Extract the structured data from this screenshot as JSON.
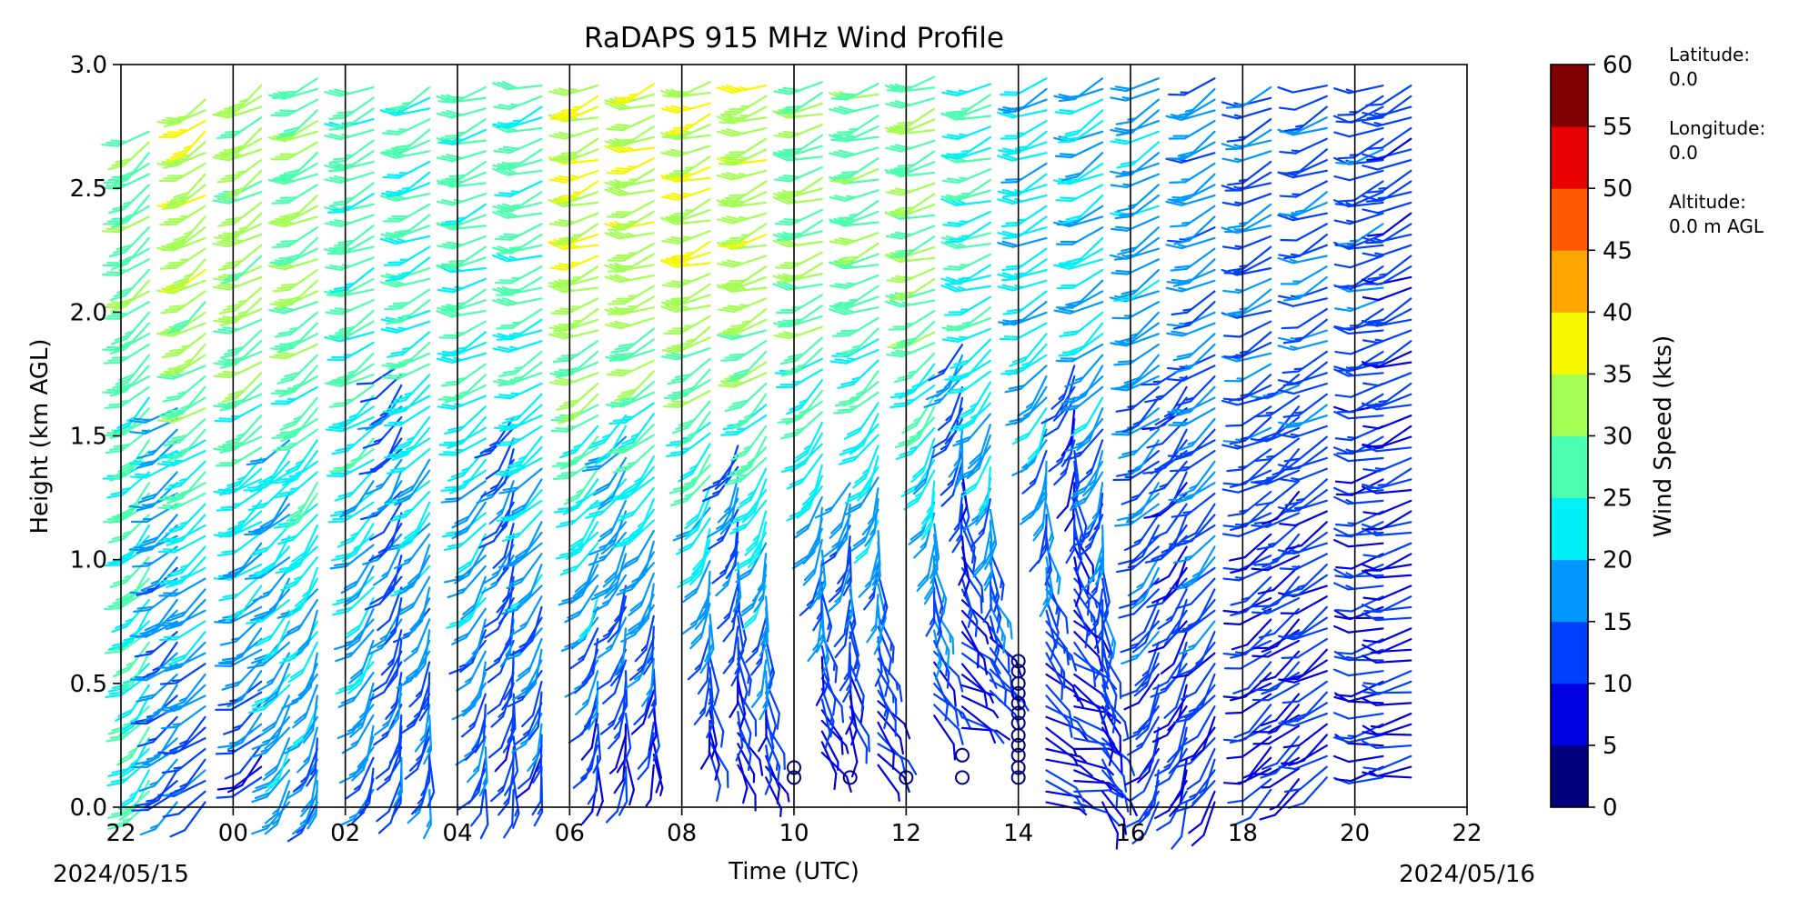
{
  "chart_data": {
    "type": "wind-barb profile",
    "title": "RaDAPS 915 MHz Wind Profile",
    "xlabel": "Time (UTC)",
    "ylabel": "Height (km AGL)",
    "xlim_hours": [
      -2,
      22
    ],
    "ylim_km": [
      0,
      3.0
    ],
    "x_tick_labels": [
      "22",
      "00",
      "02",
      "04",
      "06",
      "08",
      "10",
      "12",
      "14",
      "16",
      "18",
      "20",
      "22"
    ],
    "y_tick_labels": [
      "0.0",
      "0.5",
      "1.0",
      "1.5",
      "2.0",
      "2.5",
      "3.0"
    ],
    "date_start": "2024/05/15",
    "date_end": "2024/05/16",
    "hourly_divider_hours": [
      0,
      2,
      4,
      6,
      8,
      10,
      12,
      14,
      16,
      18,
      20
    ],
    "colorbar": {
      "label": "Wind Speed (kts)",
      "tick_labels": [
        "0",
        "5",
        "10",
        "15",
        "20",
        "25",
        "30",
        "35",
        "40",
        "45",
        "50",
        "55",
        "60"
      ],
      "bin_colors": [
        "#00007f",
        "#0000e3",
        "#0040ff",
        "#0098ff",
        "#00f0f7",
        "#4affad",
        "#a3ff54",
        "#f7f700",
        "#ffa600",
        "#ff5a00",
        "#e80000",
        "#7f0000"
      ]
    },
    "station": {
      "lat_label": "Latitude:",
      "lat_value": "0.0",
      "lon_label": "Longitude:",
      "lon_value": "0.0",
      "alt_label": "Altitude:",
      "alt_value": "0.0 m AGL"
    },
    "profiles": [
      {
        "t": -1.5,
        "bottom": 0.0,
        "top": 2.75,
        "lower": {
          "dir": 218,
          "spd": 24
        },
        "upper": {
          "dir": 232,
          "spd": 28
        }
      },
      {
        "t": -1.0,
        "bottom": 0.0,
        "top": 1.65,
        "lower": {
          "dir": 225,
          "spd": 15
        },
        "upper": {
          "dir": 240,
          "spd": 20
        }
      },
      {
        "t": -0.5,
        "bottom": 0.0,
        "top": 2.9,
        "lower": {
          "dir": 230,
          "spd": 13
        },
        "upper": {
          "dir": 235,
          "spd": 33
        }
      },
      {
        "t": 0.5,
        "bottom": 0.1,
        "top": 2.95,
        "lower": {
          "dir": 225,
          "spd": 12
        },
        "upper": {
          "dir": 238,
          "spd": 32
        }
      },
      {
        "t": 1.0,
        "bottom": 0.0,
        "top": 1.5,
        "lower": {
          "dir": 210,
          "spd": 18
        },
        "upper": {
          "dir": 235,
          "spd": 22
        }
      },
      {
        "t": 1.5,
        "bottom": 0.0,
        "top": 2.95,
        "lower": {
          "dir": 195,
          "spd": 16
        },
        "upper": {
          "dir": 240,
          "spd": 30
        }
      },
      {
        "t": 2.5,
        "bottom": 0.05,
        "top": 2.95,
        "lower": {
          "dir": 200,
          "spd": 16
        },
        "upper": {
          "dir": 245,
          "spd": 27
        }
      },
      {
        "t": 3.0,
        "bottom": 0.05,
        "top": 1.8,
        "lower": {
          "dir": 190,
          "spd": 13
        },
        "upper": {
          "dir": 230,
          "spd": 14
        }
      },
      {
        "t": 3.5,
        "bottom": 0.05,
        "top": 2.95,
        "lower": {
          "dir": 185,
          "spd": 13
        },
        "upper": {
          "dir": 245,
          "spd": 26
        }
      },
      {
        "t": 4.5,
        "bottom": 0.05,
        "top": 2.95,
        "lower": {
          "dir": 190,
          "spd": 13
        },
        "upper": {
          "dir": 250,
          "spd": 27
        }
      },
      {
        "t": 5.0,
        "bottom": 0.05,
        "top": 1.6,
        "lower": {
          "dir": 185,
          "spd": 12
        },
        "upper": {
          "dir": 220,
          "spd": 14
        }
      },
      {
        "t": 5.5,
        "bottom": 0.1,
        "top": 2.95,
        "lower": {
          "dir": 190,
          "spd": 12
        },
        "upper": {
          "dir": 250,
          "spd": 27
        }
      },
      {
        "t": 6.5,
        "bottom": 0.1,
        "top": 2.95,
        "lower": {
          "dir": 185,
          "spd": 10
        },
        "upper": {
          "dir": 250,
          "spd": 34
        }
      },
      {
        "t": 7.0,
        "bottom": 0.1,
        "top": 1.6,
        "lower": {
          "dir": 180,
          "spd": 9
        },
        "upper": {
          "dir": 240,
          "spd": 26
        }
      },
      {
        "t": 7.5,
        "bottom": 0.15,
        "top": 2.95,
        "lower": {
          "dir": 175,
          "spd": 8
        },
        "upper": {
          "dir": 250,
          "spd": 33
        }
      },
      {
        "t": 8.5,
        "bottom": 0.2,
        "top": 2.95,
        "lower": {
          "dir": 160,
          "spd": 8
        },
        "upper": {
          "dir": 250,
          "spd": 34
        }
      },
      {
        "t": 9.0,
        "bottom": 0.15,
        "top": 1.5,
        "lower": {
          "dir": 150,
          "spd": 9
        },
        "upper": {
          "dir": 240,
          "spd": 20
        }
      },
      {
        "t": 9.5,
        "bottom": 0.1,
        "top": 2.95,
        "lower": {
          "dir": 155,
          "spd": 9
        },
        "upper": {
          "dir": 250,
          "spd": 33
        }
      },
      {
        "t": 10.5,
        "bottom": 0.2,
        "top": 2.95,
        "lower": {
          "dir": 140,
          "spd": 7
        },
        "upper": {
          "dir": 250,
          "spd": 30
        }
      },
      {
        "t": 11.0,
        "bottom": 0.3,
        "top": 1.35,
        "lower": {
          "dir": 150,
          "spd": 8
        },
        "upper": {
          "dir": 240,
          "spd": 22
        }
      },
      {
        "t": 11.5,
        "bottom": 0.15,
        "top": 2.95,
        "lower": {
          "dir": 130,
          "spd": 8
        },
        "upper": {
          "dir": 250,
          "spd": 28
        }
      },
      {
        "t": 12.5,
        "bottom": 0.35,
        "top": 2.95,
        "lower": {
          "dir": 120,
          "spd": 7
        },
        "upper": {
          "dir": 250,
          "spd": 30
        }
      },
      {
        "t": 13.0,
        "bottom": 0.3,
        "top": 1.9,
        "lower": {
          "dir": 100,
          "spd": 7
        },
        "upper": {
          "dir": 235,
          "spd": 16
        }
      },
      {
        "t": 13.5,
        "bottom": 0.45,
        "top": 2.95,
        "lower": {
          "dir": 110,
          "spd": 8
        },
        "upper": {
          "dir": 250,
          "spd": 25
        }
      },
      {
        "t": 14.5,
        "bottom": 0.0,
        "top": 2.95,
        "lower": {
          "dir": 110,
          "spd": 8
        },
        "upper": {
          "dir": 245,
          "spd": 22
        }
      },
      {
        "t": 15.0,
        "bottom": 0.0,
        "top": 1.8,
        "lower": {
          "dir": 100,
          "spd": 9
        },
        "upper": {
          "dir": 230,
          "spd": 13
        }
      },
      {
        "t": 15.5,
        "bottom": 0.0,
        "top": 2.95,
        "lower": {
          "dir": 140,
          "spd": 10
        },
        "upper": {
          "dir": 240,
          "spd": 20
        }
      },
      {
        "t": 16.5,
        "bottom": 0.0,
        "top": 2.95,
        "lower": {
          "dir": 200,
          "spd": 11
        },
        "upper": {
          "dir": 240,
          "spd": 18
        }
      },
      {
        "t": 17.0,
        "bottom": 0.0,
        "top": 1.8,
        "lower": {
          "dir": 200,
          "spd": 10
        },
        "upper": {
          "dir": 230,
          "spd": 13
        }
      },
      {
        "t": 17.5,
        "bottom": 0.0,
        "top": 2.95,
        "lower": {
          "dir": 210,
          "spd": 11
        },
        "upper": {
          "dir": 240,
          "spd": 17
        }
      },
      {
        "t": 18.5,
        "bottom": 0.05,
        "top": 2.95,
        "lower": {
          "dir": 230,
          "spd": 9
        },
        "upper": {
          "dir": 245,
          "spd": 15
        }
      },
      {
        "t": 19.0,
        "bottom": 0.05,
        "top": 1.75,
        "lower": {
          "dir": 230,
          "spd": 9
        },
        "upper": {
          "dir": 235,
          "spd": 14
        }
      },
      {
        "t": 19.5,
        "bottom": 0.1,
        "top": 2.95,
        "lower": {
          "dir": 235,
          "spd": 10
        },
        "upper": {
          "dir": 245,
          "spd": 14
        }
      },
      {
        "t": 20.5,
        "bottom": 0.1,
        "top": 2.95,
        "lower": {
          "dir": 260,
          "spd": 10
        },
        "upper": {
          "dir": 250,
          "spd": 13
        }
      },
      {
        "t": 21.0,
        "bottom": 0.1,
        "top": 2.95,
        "lower": {
          "dir": 260,
          "spd": 9
        },
        "upper": {
          "dir": 245,
          "spd": 12
        }
      }
    ],
    "calm_markers": [
      {
        "t": 10.0,
        "h": 0.12
      },
      {
        "t": 10.0,
        "h": 0.16
      },
      {
        "t": 11.0,
        "h": 0.12
      },
      {
        "t": 12.0,
        "h": 0.12
      },
      {
        "t": 13.0,
        "h": 0.12
      },
      {
        "t": 13.0,
        "h": 0.21
      },
      {
        "t": 14.0,
        "h": 0.12
      },
      {
        "t": 14.0,
        "h": 0.16
      },
      {
        "t": 14.0,
        "h": 0.21
      },
      {
        "t": 14.0,
        "h": 0.25
      },
      {
        "t": 14.0,
        "h": 0.29
      },
      {
        "t": 14.0,
        "h": 0.34
      },
      {
        "t": 14.0,
        "h": 0.38
      },
      {
        "t": 14.0,
        "h": 0.42
      },
      {
        "t": 14.0,
        "h": 0.46
      },
      {
        "t": 14.0,
        "h": 0.5
      },
      {
        "t": 14.0,
        "h": 0.55
      },
      {
        "t": 14.0,
        "h": 0.59
      }
    ]
  }
}
